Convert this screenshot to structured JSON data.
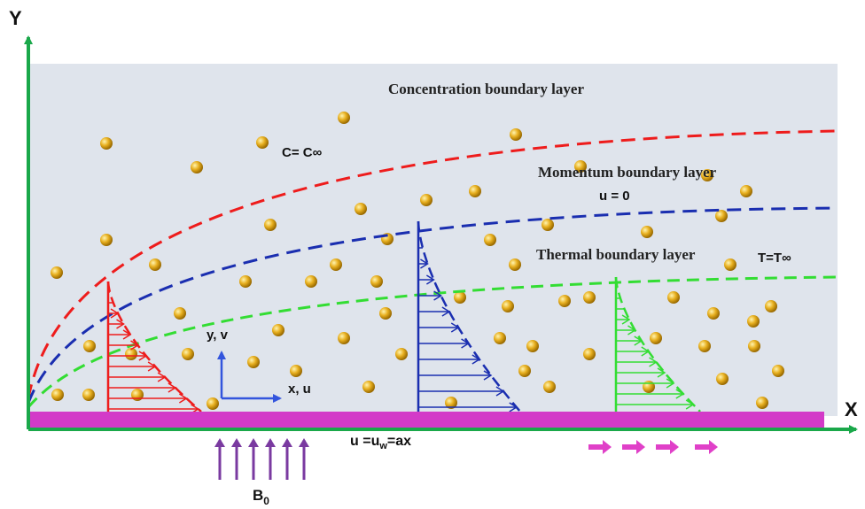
{
  "axes": {
    "y_label": "Y",
    "x_label": "X"
  },
  "layers": {
    "concentration": {
      "label": "Concentration boundary layer",
      "condition": "C= C∞"
    },
    "momentum": {
      "label": "Momentum boundary layer",
      "condition": "u = 0"
    },
    "thermal": {
      "label": "Thermal boundary layer",
      "condition": "T=T∞"
    }
  },
  "coordinates": {
    "vertical": "y, v",
    "horizontal": "x, u"
  },
  "wall_velocity": {
    "prefix": "u =u",
    "subscript": "w",
    "suffix": "=ax"
  },
  "magnetic_field": {
    "symbol": "B",
    "subscript": "0"
  }
}
